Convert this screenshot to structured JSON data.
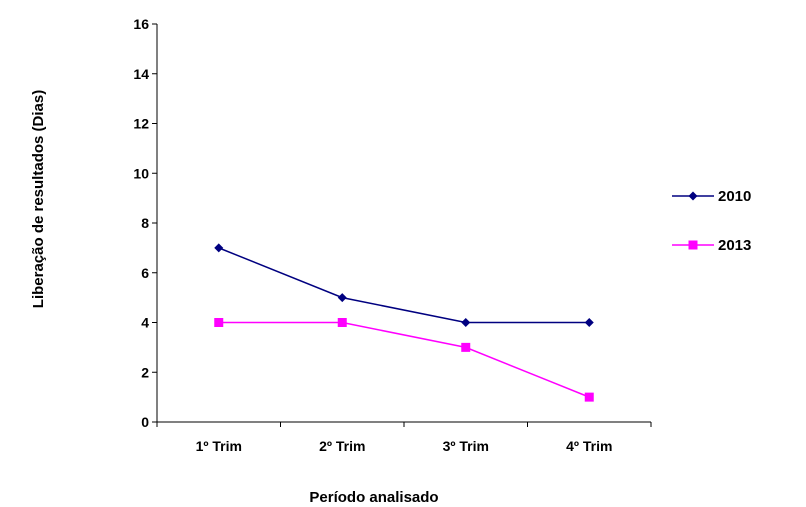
{
  "chart_data": {
    "type": "line",
    "title": "",
    "xlabel": "Período analisado",
    "ylabel": "Liberação de resultados (Dias)",
    "categories": [
      "1º Trim",
      "2º Trim",
      "3º Trim",
      "4º Trim"
    ],
    "ylim": [
      0,
      16
    ],
    "yticks": [
      0,
      2,
      4,
      6,
      8,
      10,
      12,
      14,
      16
    ],
    "ytick_labels": [
      "0",
      "2",
      "4",
      "6",
      "8",
      "10",
      "12",
      "14",
      "16"
    ],
    "grid": false,
    "legend_position": "right",
    "series": [
      {
        "name": "2010",
        "values": [
          7,
          5,
          4,
          4
        ],
        "color": "#000080",
        "marker": "diamond"
      },
      {
        "name": "2013",
        "values": [
          4,
          4,
          3,
          1
        ],
        "color": "#ff00ff",
        "marker": "square"
      }
    ]
  }
}
